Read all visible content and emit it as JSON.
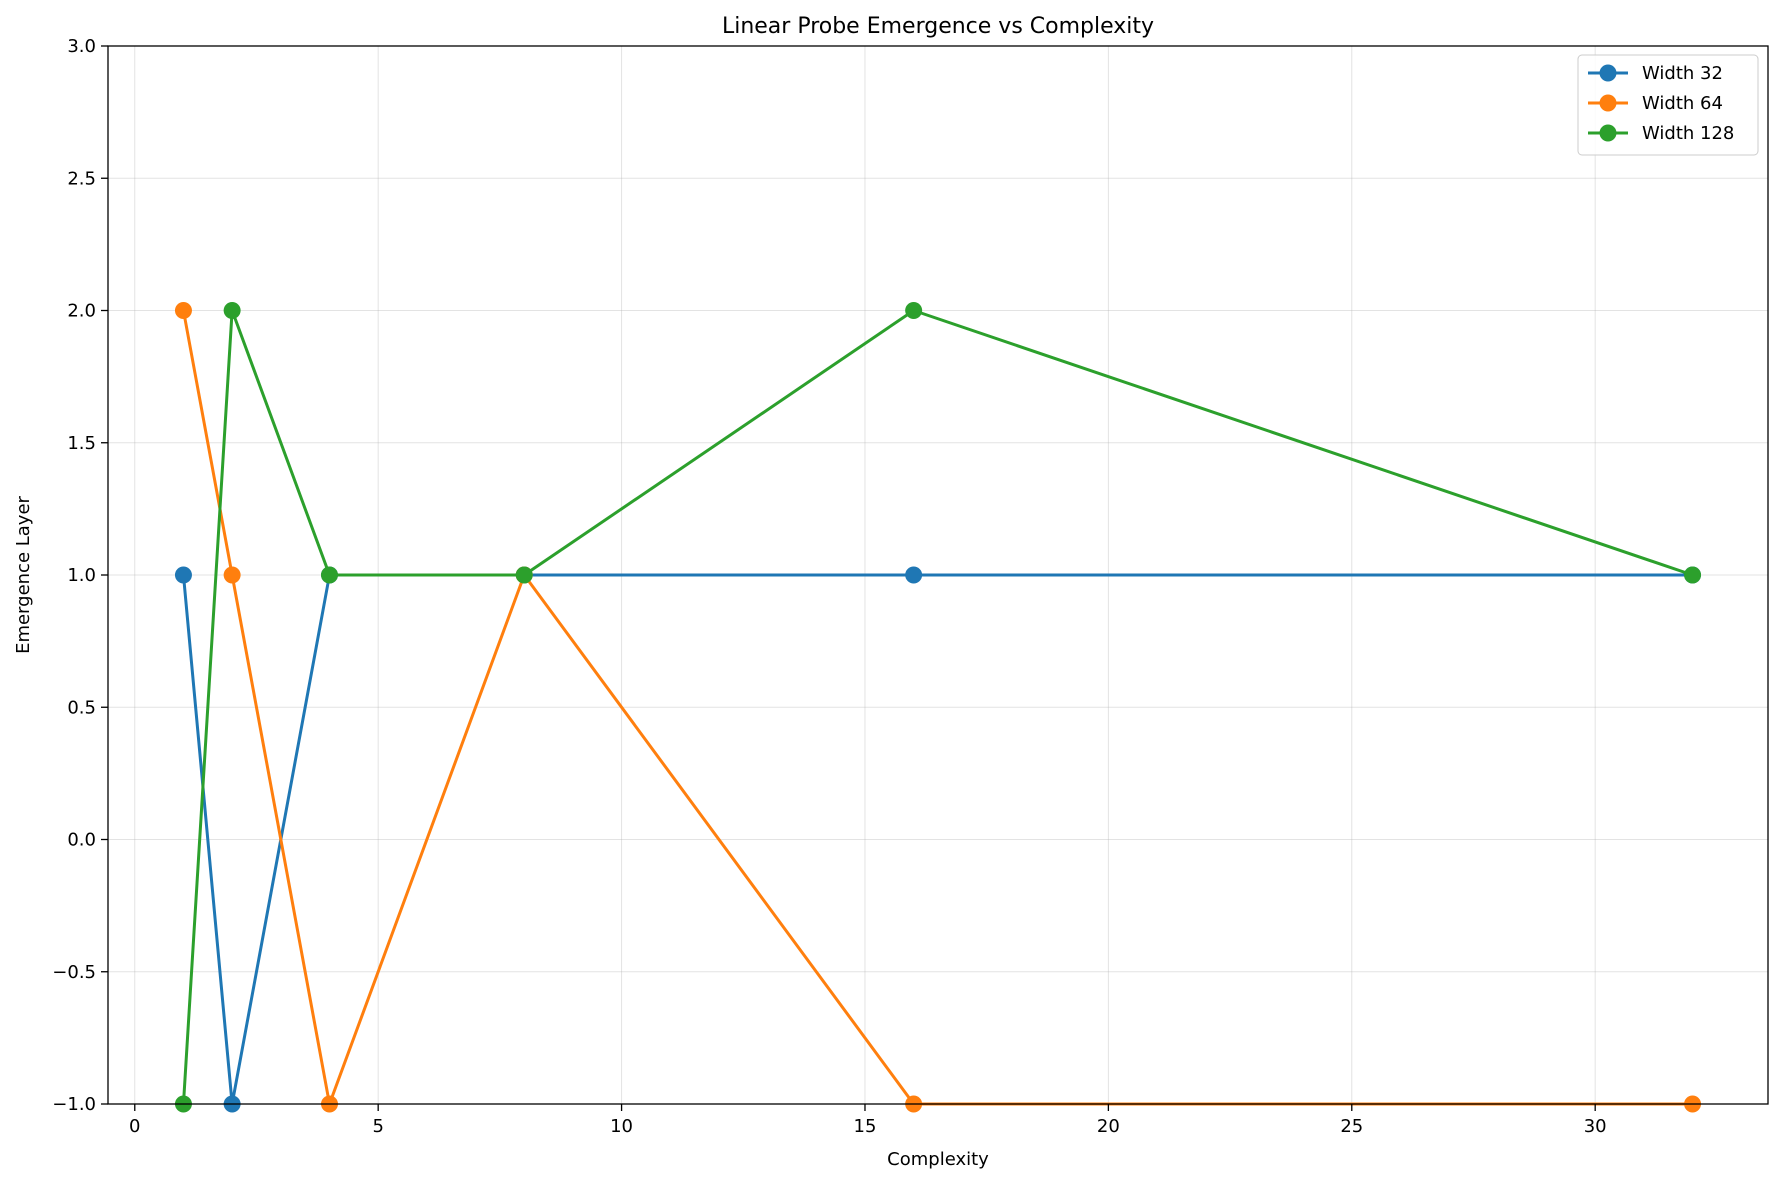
{
  "chart_data": {
    "type": "line",
    "title": "Linear Probe Emergence vs Complexity",
    "xlabel": "Complexity",
    "ylabel": "Emergence Layer",
    "xlim": [
      -0.55,
      33.55
    ],
    "ylim": [
      -1.0,
      3.0
    ],
    "xticks": [
      0,
      5,
      10,
      15,
      20,
      25,
      30
    ],
    "xtick_labels": [
      "0",
      "5",
      "10",
      "15",
      "20",
      "25",
      "30"
    ],
    "yticks": [
      -1.0,
      -0.5,
      0.0,
      0.5,
      1.0,
      1.5,
      2.0,
      2.5,
      3.0
    ],
    "ytick_labels": [
      "−1.0",
      "−0.5",
      "0.0",
      "0.5",
      "1.0",
      "1.5",
      "2.0",
      "2.5",
      "3.0"
    ],
    "grid": true,
    "legend_position": "top-right",
    "x": [
      1,
      2,
      4,
      8,
      16,
      32
    ],
    "series": [
      {
        "name": "Width 32",
        "color": "#1f77b4",
        "values": [
          1,
          -1,
          1,
          1,
          1,
          1
        ]
      },
      {
        "name": "Width 64",
        "color": "#ff7f0e",
        "values": [
          2,
          1,
          -1,
          1,
          -1,
          -1
        ]
      },
      {
        "name": "Width 128",
        "color": "#2ca02c",
        "values": [
          -1,
          2,
          1,
          1,
          2,
          1
        ]
      }
    ]
  }
}
